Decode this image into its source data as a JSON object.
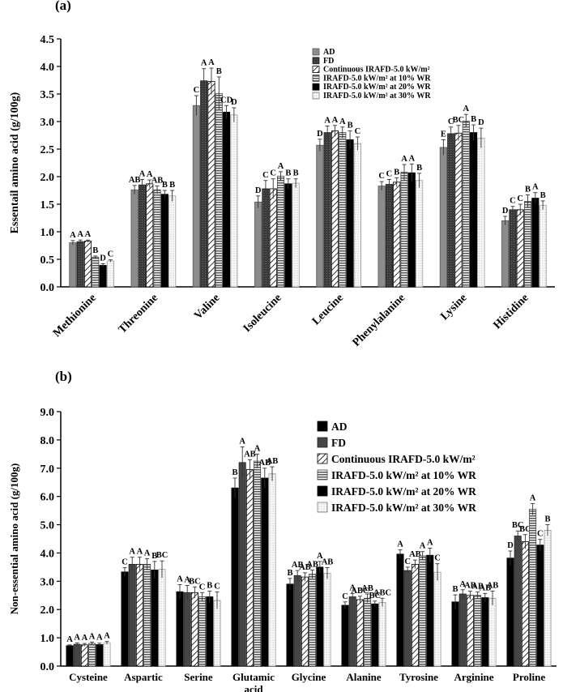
{
  "panels": {
    "a": {
      "label": "(a)"
    },
    "b": {
      "label": "(b)"
    }
  },
  "colors": {
    "AD": "#8c8c8c",
    "FD": "#3a3a3a",
    "Continuous": "#ffffff",
    "WR10": "#9a9a9a",
    "WR20": "#000000",
    "WR30": "#f4f4f4",
    "b_AD": "#000000",
    "b_FD": "#454545"
  },
  "chart_data": [
    {
      "type": "bar",
      "panel": "a",
      "title": "",
      "xlabel": "",
      "ylabel": "Essentail amino acid (g/100g)",
      "ylim": [
        0,
        4.5
      ],
      "yticks": [
        "0.0",
        "0.5",
        "1.0",
        "1.5",
        "2.0",
        "2.5",
        "3.0",
        "3.5",
        "4.0",
        "4.5"
      ],
      "categories": [
        "Methionine",
        "Threonine",
        "Valine",
        "Isoleucine",
        "Leucine",
        "Phenylalanine",
        "Lysine",
        "Histidine"
      ],
      "legend_position": "top-right",
      "series": [
        {
          "name": "AD",
          "values": [
            0.8,
            1.76,
            3.29,
            1.54,
            2.57,
            1.83,
            2.53,
            1.2
          ],
          "errors": [
            0.04,
            0.08,
            0.18,
            0.11,
            0.11,
            0.08,
            0.14,
            0.08
          ],
          "letters": [
            "A",
            "AB",
            "C",
            "D",
            "D",
            "C",
            "E",
            "D"
          ]
        },
        {
          "name": "FD",
          "values": [
            0.82,
            1.85,
            3.74,
            1.78,
            2.8,
            1.86,
            2.78,
            1.4
          ],
          "errors": [
            0.03,
            0.1,
            0.22,
            0.15,
            0.12,
            0.09,
            0.12,
            0.06
          ],
          "letters": [
            "A",
            "A",
            "A",
            "C",
            "A",
            "C",
            "C",
            "C"
          ]
        },
        {
          "name": "Continuous IRAFD-5.0 kW/m²",
          "values": [
            0.83,
            1.87,
            3.73,
            1.78,
            2.83,
            1.9,
            2.79,
            1.4
          ],
          "errors": [
            0.02,
            0.07,
            0.24,
            0.18,
            0.1,
            0.08,
            0.14,
            0.1
          ],
          "letters": [
            "A",
            "A",
            "A",
            "C",
            "A",
            "B",
            "BC",
            "C"
          ]
        },
        {
          "name": "IRAFD-5.0 kW/m² at 10% WR",
          "values": [
            0.54,
            1.76,
            3.51,
            2.01,
            2.8,
            2.08,
            3.01,
            1.55
          ],
          "errors": [
            0.02,
            0.07,
            0.3,
            0.08,
            0.1,
            0.14,
            0.12,
            0.12
          ],
          "letters": [
            "B",
            "AB",
            "B",
            "A",
            "A",
            "A",
            "A",
            "B"
          ]
        },
        {
          "name": "IRAFD-5.0 kW/m² at 20% WR",
          "values": [
            0.39,
            1.68,
            3.17,
            1.87,
            2.67,
            2.07,
            2.8,
            1.61
          ],
          "errors": [
            0.03,
            0.07,
            0.12,
            0.09,
            0.16,
            0.16,
            0.14,
            0.1
          ],
          "letters": [
            "D",
            "B",
            "CD",
            "B",
            "B",
            "A",
            "B",
            "A"
          ]
        },
        {
          "name": "IRAFD-5.0 kW/m² at 30% WR",
          "values": [
            0.47,
            1.65,
            3.12,
            1.88,
            2.6,
            1.93,
            2.7,
            1.48
          ],
          "errors": [
            0.02,
            0.1,
            0.13,
            0.08,
            0.12,
            0.13,
            0.18,
            0.08
          ],
          "letters": [
            "C",
            "B",
            "D",
            "B",
            "C",
            "B",
            "D",
            "B"
          ]
        }
      ]
    },
    {
      "type": "bar",
      "panel": "b",
      "title": "",
      "xlabel": "",
      "ylabel": "Non-essential amino acid (g/100g)",
      "ylim": [
        0,
        9
      ],
      "yticks": [
        "0.0",
        "1.0",
        "2.0",
        "3.0",
        "4.0",
        "5.0",
        "6.0",
        "7.0",
        "8.0",
        "9.0"
      ],
      "categories": [
        "Cysteine",
        "Aspartic",
        "Serine",
        "Glutamic acid",
        "Glycine",
        "Alanine",
        "Tyrosine",
        "Arginine",
        "Proline"
      ],
      "legend_position": "top-right",
      "series": [
        {
          "name": "AD",
          "values": [
            0.72,
            3.33,
            2.63,
            6.3,
            2.9,
            2.15,
            3.96,
            2.27,
            3.82
          ],
          "errors": [
            0.03,
            0.15,
            0.25,
            0.35,
            0.2,
            0.12,
            0.15,
            0.25,
            0.25
          ],
          "letters": [
            "A",
            "C",
            "A",
            "B",
            "B",
            "C",
            "A",
            "B",
            "D"
          ]
        },
        {
          "name": "FD",
          "values": [
            0.77,
            3.6,
            2.6,
            7.2,
            3.2,
            2.45,
            3.38,
            2.55,
            4.6
          ],
          "errors": [
            0.05,
            0.25,
            0.25,
            0.55,
            0.18,
            0.12,
            0.12,
            0.15,
            0.18
          ],
          "letters": [
            "A",
            "A",
            "A",
            "A",
            "AB",
            "A",
            "C",
            "A",
            "BC"
          ]
        },
        {
          "name": "Continuous IRAFD-5.0 kW/m²",
          "values": [
            0.75,
            3.6,
            2.6,
            6.95,
            3.15,
            2.35,
            3.6,
            2.5,
            4.4
          ],
          "errors": [
            0.05,
            0.25,
            0.2,
            0.35,
            0.15,
            0.12,
            0.15,
            0.15,
            0.25
          ],
          "letters": [
            "A",
            "A",
            "BC",
            "AB",
            "AB",
            "ABC",
            "AB",
            "AB",
            "BC"
          ]
        },
        {
          "name": "IRAFD-5.0 kW/m² at 10% WR",
          "values": [
            0.8,
            3.6,
            2.45,
            7.25,
            3.25,
            2.4,
            3.9,
            2.5,
            5.55
          ],
          "errors": [
            0.05,
            0.2,
            0.15,
            0.25,
            0.15,
            0.15,
            0.15,
            0.12,
            0.2
          ],
          "letters": [
            "A",
            "A",
            "C",
            "A",
            "AB",
            "AB",
            "A",
            "AB",
            "A"
          ]
        },
        {
          "name": "IRAFD-5.0 kW/m² at 20% WR",
          "values": [
            0.76,
            3.4,
            2.45,
            6.65,
            3.5,
            2.2,
            3.92,
            2.42,
            4.28
          ],
          "errors": [
            0.05,
            0.3,
            0.2,
            0.35,
            0.2,
            0.1,
            0.25,
            0.15,
            0.2
          ],
          "letters": [
            "A",
            "B",
            "B",
            "AB",
            "A",
            "BC",
            "A",
            "AB",
            "C"
          ]
        },
        {
          "name": "IRAFD-5.0 kW/m² at 30% WR",
          "values": [
            0.82,
            3.42,
            2.32,
            6.8,
            3.28,
            2.25,
            3.32,
            2.4,
            4.8
          ],
          "errors": [
            0.05,
            0.3,
            0.3,
            0.25,
            0.2,
            0.15,
            0.3,
            0.25,
            0.2
          ],
          "letters": [
            "A",
            "BC",
            "C",
            "AB",
            "AB",
            "ABC",
            "C",
            "AB",
            "B"
          ]
        }
      ]
    }
  ]
}
